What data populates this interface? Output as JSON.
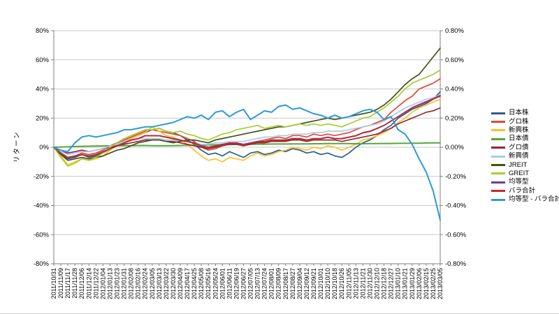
{
  "chart_data": {
    "type": "line",
    "title": "",
    "ylabel": "リターン",
    "grid": "horizontal",
    "legend_position": "right",
    "left_axis": {
      "min": -80,
      "max": 80,
      "tick_step": 20,
      "tick_values": [
        80,
        60,
        40,
        20,
        0,
        -20,
        -40,
        -60,
        -80
      ],
      "tick_labels": [
        "80%",
        "60%",
        "40%",
        "20%",
        "0%",
        "-20%",
        "-40%",
        "-60%",
        "-80%"
      ]
    },
    "right_axis": {
      "tick_values": [
        80,
        60,
        40,
        20,
        0,
        -20,
        -40,
        -60,
        -80
      ],
      "tick_labels": [
        "0.80%",
        "0.60%",
        "0.40%",
        "0.20%",
        "0.00%",
        "-0.20%",
        "-0.40%",
        "-0.60%",
        "-0.80%"
      ]
    },
    "x": [
      "2011/10/31",
      "2011/11/09",
      "2011/11/17",
      "2011/11/28",
      "2011/12/06",
      "2011/12/14",
      "2011/12/22",
      "2012/01/04",
      "2012/01/13",
      "2012/01/23",
      "2012/01/31",
      "2012/02/08",
      "2012/02/16",
      "2012/02/24",
      "2012/03/05",
      "2012/03/13",
      "2012/03/22",
      "2012/03/30",
      "2012/04/09",
      "2012/04/17",
      "2012/04/25",
      "2012/05/08",
      "2012/05/16",
      "2012/05/24",
      "2012/06/01",
      "2012/06/11",
      "2012/06/19",
      "2012/06/27",
      "2012/07/05",
      "2012/07/13",
      "2012/07/24",
      "2012/08/01",
      "2012/08/09",
      "2012/08/17",
      "2012/08/27",
      "2012/09/04",
      "2012/09/12",
      "2012/09/21",
      "2012/10/01",
      "2012/10/10",
      "2012/10/18",
      "2012/10/26",
      "2012/11/05",
      "2012/11/13",
      "2012/11/21",
      "2012/11/30",
      "2012/12/10",
      "2012/12/18",
      "2012/12/27",
      "2013/01/10",
      "2013/01/21",
      "2013/01/29",
      "2013/02/06",
      "2013/02/15",
      "2013/02/25",
      "2013/03/05"
    ],
    "series": [
      {
        "name": "日本株",
        "color": "#265F8F",
        "values": [
          0,
          -5,
          -8,
          -7,
          -5,
          -7,
          -6,
          -4,
          -1,
          2,
          4,
          6,
          8,
          10,
          12,
          13,
          11,
          10,
          8,
          5,
          2,
          -2,
          -5,
          -4,
          -6,
          -3,
          -5,
          -7,
          -4,
          -3,
          -5,
          -4,
          -2,
          -3,
          -1,
          -2,
          -4,
          -3,
          -5,
          -4,
          -6,
          -7,
          -4,
          0,
          3,
          5,
          8,
          12,
          15,
          20,
          23,
          26,
          28,
          30,
          33,
          38
        ]
      },
      {
        "name": "グロ株",
        "color": "#E2492F",
        "values": [
          0,
          -4,
          -7,
          -6,
          -4,
          -5,
          -4,
          -2,
          1,
          3,
          5,
          7,
          9,
          11,
          12,
          11,
          10,
          9,
          8,
          6,
          4,
          0,
          -2,
          -1,
          1,
          3,
          2,
          1,
          3,
          4,
          5,
          6,
          7,
          6,
          8,
          8,
          7,
          9,
          8,
          9,
          8,
          9,
          10,
          12,
          14,
          15,
          17,
          19,
          24,
          28,
          32,
          35,
          40,
          42,
          44,
          47
        ]
      },
      {
        "name": "新興株",
        "color": "#FDC029",
        "values": [
          0,
          -6,
          -12,
          -10,
          -8,
          -9,
          -8,
          -6,
          -2,
          1,
          4,
          6,
          8,
          10,
          14,
          11,
          8,
          7,
          5,
          2,
          -2,
          -6,
          -9,
          -8,
          -10,
          -7,
          -8,
          -9,
          -6,
          -4,
          -6,
          -5,
          -3,
          -2,
          0,
          -1,
          -2,
          0,
          -1,
          1,
          0,
          -2,
          0,
          2,
          5,
          6,
          8,
          10,
          13,
          17,
          20,
          24,
          27,
          29,
          31,
          33
        ]
      },
      {
        "name": "日本債",
        "color": "#58A63C",
        "values": [
          0,
          0.2,
          0.3,
          0.5,
          0.6,
          0.7,
          0.8,
          0.9,
          1,
          1,
          1.1,
          1.1,
          1.2,
          1.2,
          1.1,
          1,
          1,
          1.1,
          1.2,
          1.3,
          1.4,
          1.5,
          1.6,
          1.7,
          1.8,
          1.8,
          1.9,
          2,
          2,
          2.1,
          2.1,
          2.2,
          2.2,
          2.2,
          2.3,
          2.3,
          2.3,
          2.4,
          2.4,
          2.5,
          2.5,
          2.5,
          2.5,
          2.4,
          2.4,
          2.5,
          2.5,
          2.6,
          2.6,
          2.7,
          2.7,
          2.8,
          2.8,
          2.9,
          3,
          3
        ]
      },
      {
        "name": "グロ債",
        "color": "#952735",
        "values": [
          0,
          -3,
          -4,
          -3,
          -2,
          -3,
          -2,
          -1,
          0,
          1,
          2,
          3,
          4,
          5,
          5,
          5,
          4,
          4,
          3,
          2,
          1,
          0,
          -1,
          0,
          1,
          2,
          2,
          1,
          2,
          3,
          3,
          4,
          4,
          4,
          5,
          5,
          4,
          5,
          5,
          5,
          5,
          4,
          5,
          6,
          7,
          8,
          9,
          11,
          13,
          16,
          18,
          20,
          22,
          24,
          25,
          27
        ]
      },
      {
        "name": "新興債",
        "color": "#A8CBEA",
        "values": [
          0,
          -3,
          -5,
          -4,
          -3,
          -3,
          -2,
          -1,
          1,
          2,
          4,
          5,
          6,
          6,
          6,
          6,
          5,
          5,
          4,
          4,
          3,
          2,
          2,
          3,
          3,
          4,
          4,
          4,
          5,
          6,
          7,
          7,
          8,
          8,
          9,
          9,
          9,
          10,
          10,
          11,
          11,
          11,
          12,
          13,
          14,
          15,
          16,
          18,
          21,
          24,
          27,
          29,
          31,
          33,
          34,
          36
        ]
      },
      {
        "name": "JREIT",
        "color": "#42501B",
        "values": [
          0,
          -5,
          -9,
          -8,
          -7,
          -8,
          -7,
          -6,
          -4,
          -2,
          -1,
          1,
          3,
          4,
          5,
          5,
          4,
          3,
          4,
          5,
          5,
          4,
          3,
          5,
          6,
          7,
          8,
          9,
          10,
          11,
          12,
          13,
          14,
          14,
          15,
          16,
          17,
          18,
          19,
          20,
          19,
          20,
          21,
          22,
          23,
          24,
          26,
          29,
          33,
          38,
          43,
          47,
          50,
          56,
          62,
          68
        ]
      },
      {
        "name": "GREIT",
        "color": "#A6CC33",
        "values": [
          0,
          -7,
          -13,
          -11,
          -8,
          -9,
          -7,
          -4,
          0,
          3,
          6,
          8,
          10,
          12,
          12,
          13,
          11,
          10,
          11,
          9,
          8,
          6,
          5,
          7,
          9,
          10,
          12,
          13,
          14,
          15,
          13,
          14,
          15,
          14,
          15,
          16,
          15,
          16,
          15,
          16,
          15,
          14,
          16,
          18,
          20,
          21,
          24,
          27,
          31,
          35,
          40,
          44,
          46,
          48,
          50,
          53
        ]
      },
      {
        "name": "均等型",
        "color": "#6A3D9B",
        "values": [
          0,
          -4,
          -7,
          -6,
          -5,
          -6,
          -5,
          -3,
          -1,
          1,
          3,
          5,
          6,
          8,
          8,
          8,
          7,
          6,
          5,
          4,
          3,
          1,
          0,
          1,
          2,
          3,
          3,
          2,
          3,
          4,
          4,
          5,
          5,
          5,
          6,
          6,
          5,
          6,
          6,
          7,
          6,
          6,
          7,
          8,
          10,
          11,
          13,
          15,
          18,
          21,
          24,
          27,
          29,
          31,
          33,
          35
        ]
      },
      {
        "name": "バラ合計",
        "color": "#C3292B",
        "values": [
          0,
          -4.2,
          -7.3,
          -6.2,
          -5.2,
          -6.2,
          -5.2,
          -3.2,
          -1.2,
          0.8,
          2.8,
          4.8,
          5.8,
          7.8,
          7.8,
          7.8,
          6.8,
          5.8,
          4.8,
          3.8,
          2.8,
          0.8,
          -0.2,
          0.8,
          1.8,
          2.8,
          2.8,
          1.8,
          2.8,
          3.8,
          3.8,
          4.8,
          4.7,
          4.7,
          5.7,
          5.7,
          4.8,
          5.8,
          5.8,
          6.8,
          5.8,
          5.8,
          6.8,
          7.8,
          9.8,
          10.8,
          12.8,
          14.9,
          17.9,
          21,
          24.1,
          27.2,
          29.3,
          31.4,
          33.3,
          35.5
        ]
      },
      {
        "name": "均等型 - バラ合計",
        "color": "#2C9AD9",
        "values": [
          0,
          -2,
          -3,
          3,
          7,
          8,
          7,
          8,
          9,
          10,
          12,
          12,
          13,
          14,
          14,
          15,
          16,
          17,
          19,
          21,
          20,
          22,
          19,
          24,
          25,
          21,
          24,
          26,
          19,
          22,
          25,
          24,
          28,
          29,
          26,
          27,
          25,
          23,
          22,
          20,
          22,
          20,
          21,
          23,
          25,
          26,
          24,
          19,
          21,
          12,
          9,
          2,
          -8,
          -17,
          -30,
          -50
        ]
      }
    ],
    "colors": {
      "gridline": "#C9C9C9",
      "axis": "#7F7F7F",
      "text": "#000000"
    }
  }
}
